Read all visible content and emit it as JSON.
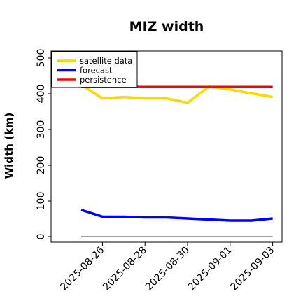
{
  "chart_data": {
    "type": "line",
    "title": "MIZ width",
    "xlabel": "",
    "ylabel": "Width (km)",
    "ylim": [
      -10,
      525
    ],
    "yticks": [
      0,
      100,
      200,
      300,
      400,
      500
    ],
    "x": [
      "2025-08-25",
      "2025-08-26",
      "2025-08-27",
      "2025-08-28",
      "2025-08-29",
      "2025-08-30",
      "2025-08-31",
      "2025-09-01",
      "2025-09-02",
      "2025-09-03"
    ],
    "xticks": [
      "2025-08-26",
      "2025-08-28",
      "2025-08-30",
      "2025-09-01",
      "2025-09-03"
    ],
    "highlight_tick": "2025-08-26",
    "series": [
      {
        "name": "satellite data",
        "color": "#FFD700",
        "values": [
          425,
          387,
          391,
          387,
          387,
          375,
          420,
          412,
          401,
          391
        ]
      },
      {
        "name": "forecast",
        "color": "#0000FF",
        "values": [
          75,
          56,
          56,
          54,
          54,
          51,
          48,
          45,
          45,
          51
        ]
      },
      {
        "name": "persistence",
        "color": "#FF0000",
        "values": [
          419,
          419,
          419,
          419,
          419,
          419,
          419,
          419,
          419,
          419
        ]
      }
    ],
    "baseline": {
      "value": 0,
      "color": "#808080"
    },
    "highlight_color": "#228B22",
    "grid": false,
    "legend_position": "top-left"
  }
}
